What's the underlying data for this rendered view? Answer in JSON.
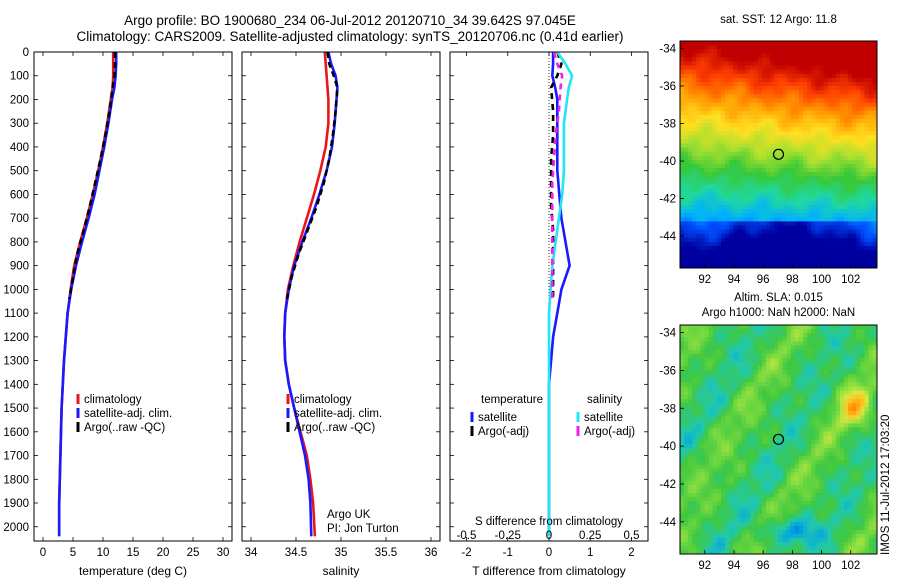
{
  "header": {
    "title_line1": "Argo profile: BO 1900680_234 06-Jul-2012 20120710_34 39.642S 97.045E",
    "title_line2": "Climatology: CARS2009. Satellite-adjusted climatology: synTS_20120706.nc (0.41d earlier)"
  },
  "stamp": "IMOS 11-Jul-2012 17:03:20",
  "colors": {
    "climatology": "#e8161b",
    "satellite": "#1a1aff",
    "argo": "#000000",
    "satellite_s": "#22e5f5",
    "argo_s": "#f020f0"
  },
  "chart_data": [
    {
      "id": "temperature",
      "type": "line",
      "xlabel": "temperature (deg C)",
      "ylabel": "",
      "xlim": [
        -1.5,
        31.5
      ],
      "ylim": [
        2060,
        0
      ],
      "xticks": [
        0,
        5,
        10,
        15,
        20,
        25,
        30
      ],
      "yticks": [
        0,
        100,
        200,
        300,
        400,
        500,
        600,
        700,
        800,
        900,
        1000,
        1100,
        1200,
        1300,
        1400,
        1500,
        1600,
        1700,
        1800,
        1900,
        2000
      ],
      "legend": [
        "climatology",
        "satellite-adj. clim.",
        "Argo(..raw -QC)"
      ],
      "legend_position": "bottom-right",
      "series": [
        {
          "name": "climatology",
          "color": "#e8161b",
          "dash": "",
          "x": [
            11.7,
            11.7,
            11.7,
            11.6,
            11.3,
            10.7,
            10.0,
            9.2,
            8.3,
            7.3,
            6.2,
            5.2,
            4.6,
            4.1,
            3.8,
            3.5,
            3.3,
            3.1,
            3.0,
            2.9,
            2.8,
            2.7,
            2.7
          ],
          "y": [
            0,
            50,
            100,
            150,
            200,
            300,
            400,
            500,
            600,
            700,
            800,
            900,
            1000,
            1100,
            1200,
            1300,
            1400,
            1500,
            1600,
            1700,
            1800,
            1900,
            2040
          ]
        },
        {
          "name": "satellite-adj. clim.",
          "color": "#1a1aff",
          "dash": "",
          "x": [
            12.2,
            12.2,
            12.1,
            11.9,
            11.5,
            10.9,
            10.2,
            9.4,
            8.6,
            7.6,
            6.5,
            5.5,
            4.7,
            4.1,
            3.8,
            3.5,
            3.3,
            3.1,
            3.0,
            2.9,
            2.8,
            2.7,
            2.7
          ],
          "y": [
            0,
            50,
            100,
            150,
            200,
            300,
            400,
            500,
            600,
            700,
            800,
            900,
            1000,
            1100,
            1200,
            1300,
            1400,
            1500,
            1600,
            1700,
            1800,
            1900,
            2040
          ]
        },
        {
          "name": "Argo(..raw -QC)",
          "color": "#000000",
          "dash": "6,4",
          "x": [
            12.0,
            12.0,
            11.9,
            11.6,
            11.1,
            10.4,
            9.6,
            8.7,
            7.8,
            6.8,
            5.7,
            5.0,
            4.4
          ],
          "y": [
            0,
            50,
            100,
            150,
            250,
            350,
            450,
            550,
            650,
            750,
            850,
            950,
            1040
          ]
        }
      ]
    },
    {
      "id": "salinity",
      "type": "line",
      "xlabel": "salinity",
      "ylabel": "",
      "xlim": [
        33.9,
        36.1
      ],
      "ylim": [
        2060,
        0
      ],
      "xticks": [
        34,
        34.5,
        35,
        35.5,
        36
      ],
      "xticklabels": [
        "34",
        "34.5",
        "35",
        "35.5",
        "36"
      ],
      "legend": [
        "climatology",
        "satellite-adj. clim.",
        "Argo(..raw -QC)"
      ],
      "legend_position": "bottom-right",
      "annotation": [
        "Argo UK",
        "PI: Jon Turton"
      ],
      "series": [
        {
          "name": "climatology",
          "color": "#e8161b",
          "dash": "",
          "x": [
            34.82,
            34.83,
            34.84,
            34.85,
            34.86,
            34.86,
            34.83,
            34.77,
            34.7,
            34.62,
            34.54,
            34.47,
            34.41,
            34.38,
            34.37,
            34.38,
            34.42,
            34.48,
            34.55,
            34.62,
            34.66,
            34.69,
            34.71
          ],
          "y": [
            0,
            50,
            100,
            150,
            200,
            300,
            400,
            500,
            600,
            700,
            800,
            900,
            1000,
            1100,
            1200,
            1300,
            1400,
            1500,
            1600,
            1700,
            1800,
            1900,
            2040
          ]
        },
        {
          "name": "satellite-adj. clim.",
          "color": "#1a1aff",
          "dash": "",
          "x": [
            34.86,
            34.89,
            34.94,
            34.96,
            34.95,
            34.93,
            34.9,
            34.84,
            34.76,
            34.67,
            34.57,
            34.48,
            34.42,
            34.38,
            34.37,
            34.38,
            34.42,
            34.48,
            34.54,
            34.6,
            34.64,
            34.66,
            34.67
          ],
          "y": [
            0,
            50,
            100,
            150,
            200,
            300,
            400,
            500,
            600,
            700,
            800,
            900,
            1000,
            1100,
            1200,
            1300,
            1400,
            1500,
            1600,
            1700,
            1800,
            1900,
            2040
          ]
        },
        {
          "name": "Argo(..raw -QC)",
          "color": "#000000",
          "dash": "6,4",
          "x": [
            34.85,
            34.87,
            34.92,
            34.96,
            34.94,
            34.91,
            34.87,
            34.81,
            34.73,
            34.63,
            34.53,
            34.45,
            34.4
          ],
          "y": [
            0,
            50,
            100,
            150,
            250,
            350,
            450,
            550,
            650,
            750,
            850,
            950,
            1040
          ]
        }
      ]
    },
    {
      "id": "difference",
      "type": "line",
      "xlabel": "T difference from climatology",
      "xlabel_top": "S difference from climatology",
      "xlim": [
        -2.4,
        2.4
      ],
      "ylim": [
        2060,
        0
      ],
      "xticks": [
        -2,
        -1,
        0,
        1,
        2
      ],
      "xticks_s": [
        -0.5,
        -0.25,
        0,
        0.25,
        0.5
      ],
      "xticklabels_s": [
        "-0.5",
        "-0.25",
        "0",
        "0.25",
        "0.5"
      ],
      "legend_groups": [
        {
          "title": "temperature",
          "items": [
            "satellite",
            "Argo(-adj)"
          ]
        },
        {
          "title": "salinity",
          "items": [
            "satellite",
            "Argo(-adj)"
          ]
        }
      ],
      "series": [
        {
          "name": "temperature satellite",
          "color": "#1a1aff",
          "dash": "",
          "x": [
            0.1,
            0.1,
            0.08,
            0.15,
            0.2,
            0.2,
            0.2,
            0.2,
            0.25,
            0.3,
            0.4,
            0.5,
            0.3,
            0.2,
            0.1,
            0.05,
            0.0,
            0.0,
            0.0,
            0.0,
            0.0,
            0.0,
            0.0
          ],
          "y": [
            0,
            50,
            100,
            150,
            200,
            300,
            400,
            500,
            600,
            700,
            800,
            900,
            1000,
            1100,
            1200,
            1300,
            1400,
            1500,
            1600,
            1700,
            1800,
            1900,
            2040
          ]
        },
        {
          "name": "temperature Argo(-adj)",
          "color": "#000000",
          "dash": "6,5",
          "x": [
            0.2,
            0.3,
            0.2,
            0.05,
            0.1,
            0.1,
            0.05,
            0.05,
            0.05,
            0.1,
            0.1,
            0.1,
            0.1
          ],
          "y": [
            0,
            50,
            100,
            150,
            250,
            350,
            450,
            550,
            650,
            750,
            850,
            950,
            1040
          ]
        },
        {
          "name": "salinity satellite",
          "color": "#22e5f5",
          "dash": "",
          "x": [
            0.05,
            0.1,
            0.14,
            0.12,
            0.11,
            0.09,
            0.09,
            0.09,
            0.08,
            0.06,
            0.04,
            0.02,
            0.01,
            0.0,
            0.0,
            0.0,
            0.0,
            0.0,
            0.0,
            0.0,
            0.0,
            0.0,
            0.0
          ],
          "y": [
            0,
            50,
            100,
            150,
            200,
            300,
            400,
            500,
            600,
            700,
            800,
            900,
            1000,
            1100,
            1200,
            1300,
            1400,
            1500,
            1600,
            1700,
            1800,
            1900,
            2040
          ]
        },
        {
          "name": "salinity Argo(-adj)",
          "color": "#f020f0",
          "dash": "6,5",
          "x": [
            0.03,
            0.05,
            0.08,
            0.07,
            0.06,
            0.04,
            0.03,
            0.02,
            0.02,
            0.02,
            0.02,
            0.02,
            0.02
          ],
          "y": [
            0,
            50,
            100,
            150,
            250,
            350,
            450,
            550,
            650,
            750,
            850,
            950,
            1040
          ]
        }
      ]
    },
    {
      "id": "sst_map",
      "type": "heatmap",
      "title": "sat. SST: 12 Argo: 11.8",
      "xlim": [
        90.3,
        103.8
      ],
      "ylim": [
        -45.7,
        -33.6
      ],
      "xticks": [
        92,
        94,
        96,
        98,
        100,
        102
      ],
      "yticks": [
        -34,
        -36,
        -38,
        -40,
        -42,
        -44
      ],
      "marker": {
        "lon": 97.05,
        "lat": -39.64
      },
      "colormap": [
        "#0000a0",
        "#0050ff",
        "#00b0ff",
        "#20d8a0",
        "#38c838",
        "#a8e030",
        "#ffe020",
        "#ff9a00",
        "#ff4000",
        "#c00000"
      ]
    },
    {
      "id": "sla_map",
      "type": "heatmap",
      "title_lines": [
        "Altim. SLA: 0.015",
        "Argo h1000: NaN h2000: NaN"
      ],
      "xlim": [
        90.3,
        103.8
      ],
      "ylim": [
        -45.7,
        -33.6
      ],
      "xticks": [
        92,
        94,
        96,
        98,
        100,
        102
      ],
      "yticks": [
        -34,
        -36,
        -38,
        -40,
        -42,
        -44
      ],
      "marker": {
        "lon": 97.05,
        "lat": -39.64
      },
      "colormap": [
        "#0050e0",
        "#00a0e0",
        "#20c8b0",
        "#40c840",
        "#80dc40",
        "#d8e840",
        "#ffc020",
        "#ff8000"
      ]
    }
  ]
}
